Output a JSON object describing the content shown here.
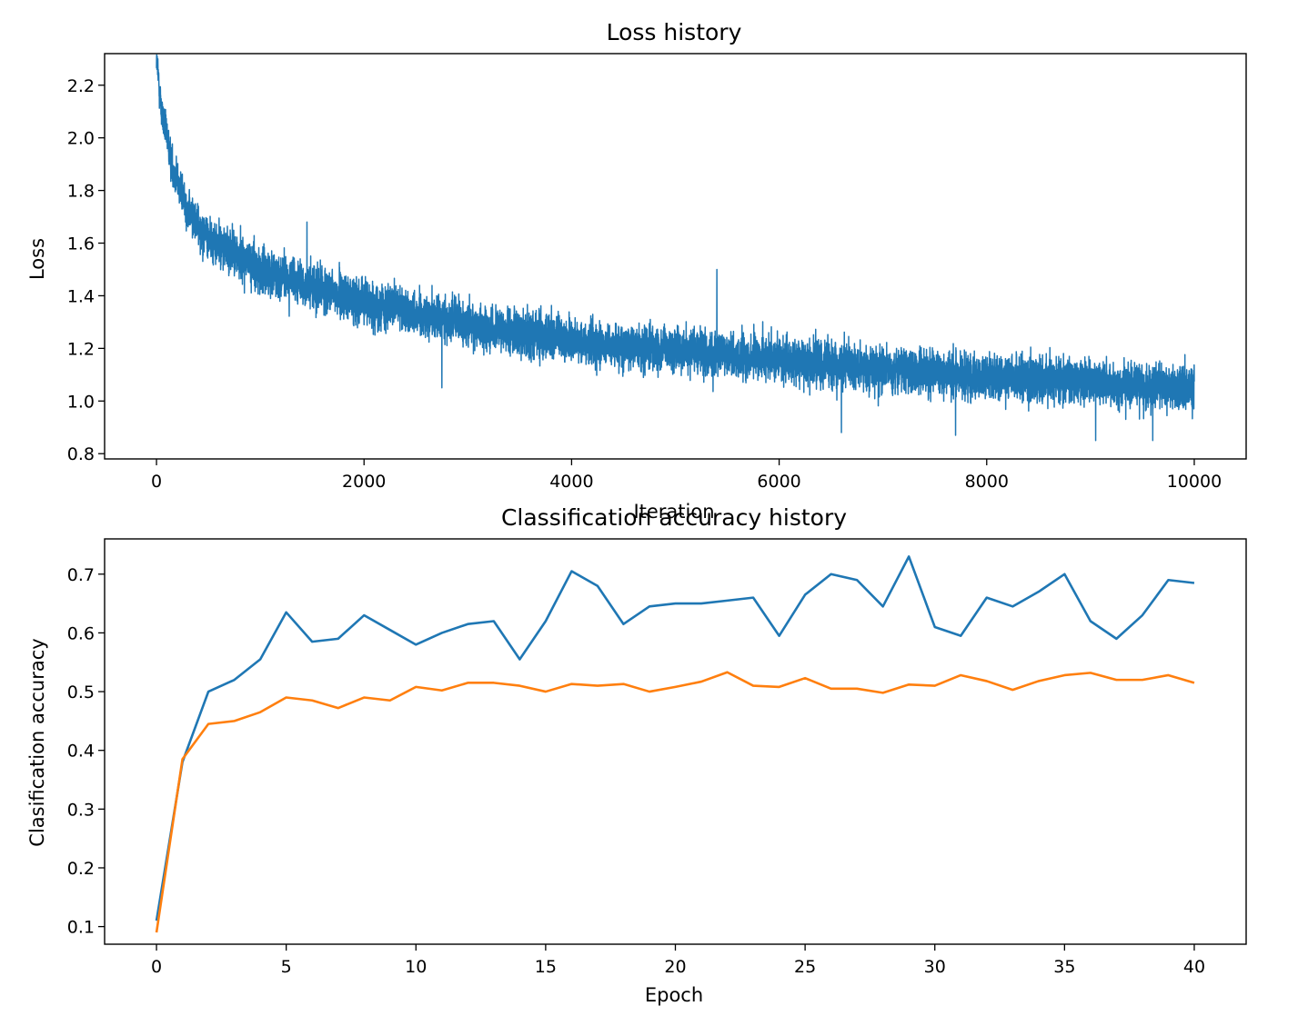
{
  "chart_data": [
    {
      "type": "line",
      "title": "Loss history",
      "xlabel": "Iteration",
      "ylabel": "Loss",
      "xlim": [
        -500,
        10500
      ],
      "ylim": [
        0.78,
        2.32
      ],
      "xticks": [
        0,
        2000,
        4000,
        6000,
        8000,
        10000
      ],
      "xtick_labels": [
        "0",
        "2000",
        "4000",
        "6000",
        "8000",
        "10000"
      ],
      "yticks": [
        0.8,
        1.0,
        1.2,
        1.4,
        1.6,
        1.8,
        2.0,
        2.2
      ],
      "ytick_labels": [
        "0.8",
        "1.0",
        "1.2",
        "1.4",
        "1.6",
        "1.8",
        "2.0",
        "2.2"
      ],
      "grid": false,
      "series": [
        {
          "color": "#1f77b4",
          "x_range": [
            0,
            10000
          ],
          "points": 10001,
          "trend_anchors": [
            [
              0,
              2.3
            ],
            [
              50,
              2.1
            ],
            [
              150,
              1.9
            ],
            [
              300,
              1.72
            ],
            [
              500,
              1.62
            ],
            [
              1000,
              1.5
            ],
            [
              1500,
              1.43
            ],
            [
              2000,
              1.38
            ],
            [
              3000,
              1.29
            ],
            [
              4000,
              1.23
            ],
            [
              5000,
              1.19
            ],
            [
              6000,
              1.16
            ],
            [
              7000,
              1.12
            ],
            [
              8000,
              1.09
            ],
            [
              9000,
              1.07
            ],
            [
              10000,
              1.05
            ]
          ],
          "spikes": [
            [
              5400,
              1.5
            ],
            [
              1450,
              1.68
            ],
            [
              2750,
              1.05
            ],
            [
              6600,
              0.88
            ],
            [
              9050,
              0.85
            ],
            [
              9600,
              0.85
            ],
            [
              7700,
              0.87
            ]
          ]
        }
      ]
    },
    {
      "type": "line",
      "title": "Classification accuracy history",
      "xlabel": "Epoch",
      "ylabel": "Clasification accuracy",
      "xlim": [
        -2,
        42
      ],
      "ylim": [
        0.07,
        0.76
      ],
      "xticks": [
        0,
        5,
        10,
        15,
        20,
        25,
        30,
        35,
        40
      ],
      "xtick_labels": [
        "0",
        "5",
        "10",
        "15",
        "20",
        "25",
        "30",
        "35",
        "40"
      ],
      "yticks": [
        0.1,
        0.2,
        0.3,
        0.4,
        0.5,
        0.6,
        0.7
      ],
      "ytick_labels": [
        "0.1",
        "0.2",
        "0.3",
        "0.4",
        "0.5",
        "0.6",
        "0.7"
      ],
      "grid": false,
      "x": [
        0,
        1,
        2,
        3,
        4,
        5,
        6,
        7,
        8,
        9,
        10,
        11,
        12,
        13,
        14,
        15,
        16,
        17,
        18,
        19,
        20,
        21,
        22,
        23,
        24,
        25,
        26,
        27,
        28,
        29,
        30,
        31,
        32,
        33,
        34,
        35,
        36,
        37,
        38,
        39,
        40
      ],
      "series": [
        {
          "color": "#1f77b4",
          "values": [
            0.11,
            0.38,
            0.5,
            0.52,
            0.555,
            0.635,
            0.585,
            0.59,
            0.63,
            0.605,
            0.58,
            0.6,
            0.615,
            0.62,
            0.555,
            0.62,
            0.705,
            0.68,
            0.615,
            0.645,
            0.65,
            0.65,
            0.655,
            0.66,
            0.595,
            0.665,
            0.7,
            0.69,
            0.645,
            0.73,
            0.61,
            0.595,
            0.66,
            0.645,
            0.67,
            0.7,
            0.62,
            0.59,
            0.63,
            0.69,
            0.685
          ]
        },
        {
          "color": "#ff7f0e",
          "values": [
            0.09,
            0.385,
            0.445,
            0.45,
            0.465,
            0.49,
            0.485,
            0.472,
            0.49,
            0.485,
            0.508,
            0.502,
            0.515,
            0.515,
            0.51,
            0.5,
            0.513,
            0.51,
            0.513,
            0.5,
            0.508,
            0.517,
            0.533,
            0.51,
            0.508,
            0.523,
            0.505,
            0.505,
            0.498,
            0.512,
            0.51,
            0.528,
            0.518,
            0.503,
            0.518,
            0.528,
            0.532,
            0.52,
            0.52,
            0.528,
            0.515
          ]
        }
      ]
    }
  ]
}
